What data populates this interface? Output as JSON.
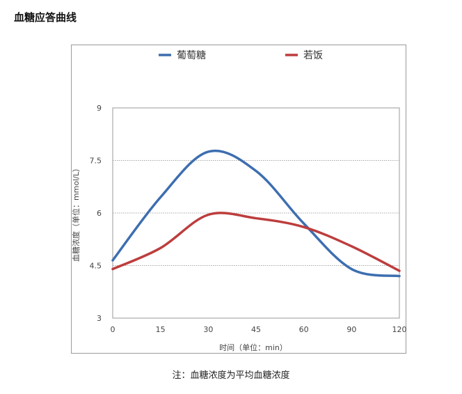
{
  "page": {
    "title": "血糖应答曲线",
    "footnote": "注：血糖浓度为平均血糖浓度"
  },
  "chart_data": {
    "type": "line",
    "title": "",
    "xlabel": "时间（单位：min）",
    "ylabel": "血糖浓度（单位：mmol/L）",
    "categories": [
      "0",
      "15",
      "30",
      "45",
      "60",
      "90",
      "120"
    ],
    "yticks": [
      "3",
      "4.5",
      "6",
      "7.5",
      "9"
    ],
    "ylim": [
      3,
      9
    ],
    "grid": "horizontal dotted",
    "legend_position": "top",
    "series": [
      {
        "name": "葡萄糖",
        "color": "#3d6eb0",
        "values": [
          4.65,
          6.45,
          7.75,
          7.2,
          5.7,
          4.4,
          4.2
        ]
      },
      {
        "name": "若饭",
        "color": "#bd3d3d",
        "values": [
          4.4,
          5.0,
          5.95,
          5.85,
          5.6,
          5.05,
          4.35
        ]
      }
    ]
  }
}
